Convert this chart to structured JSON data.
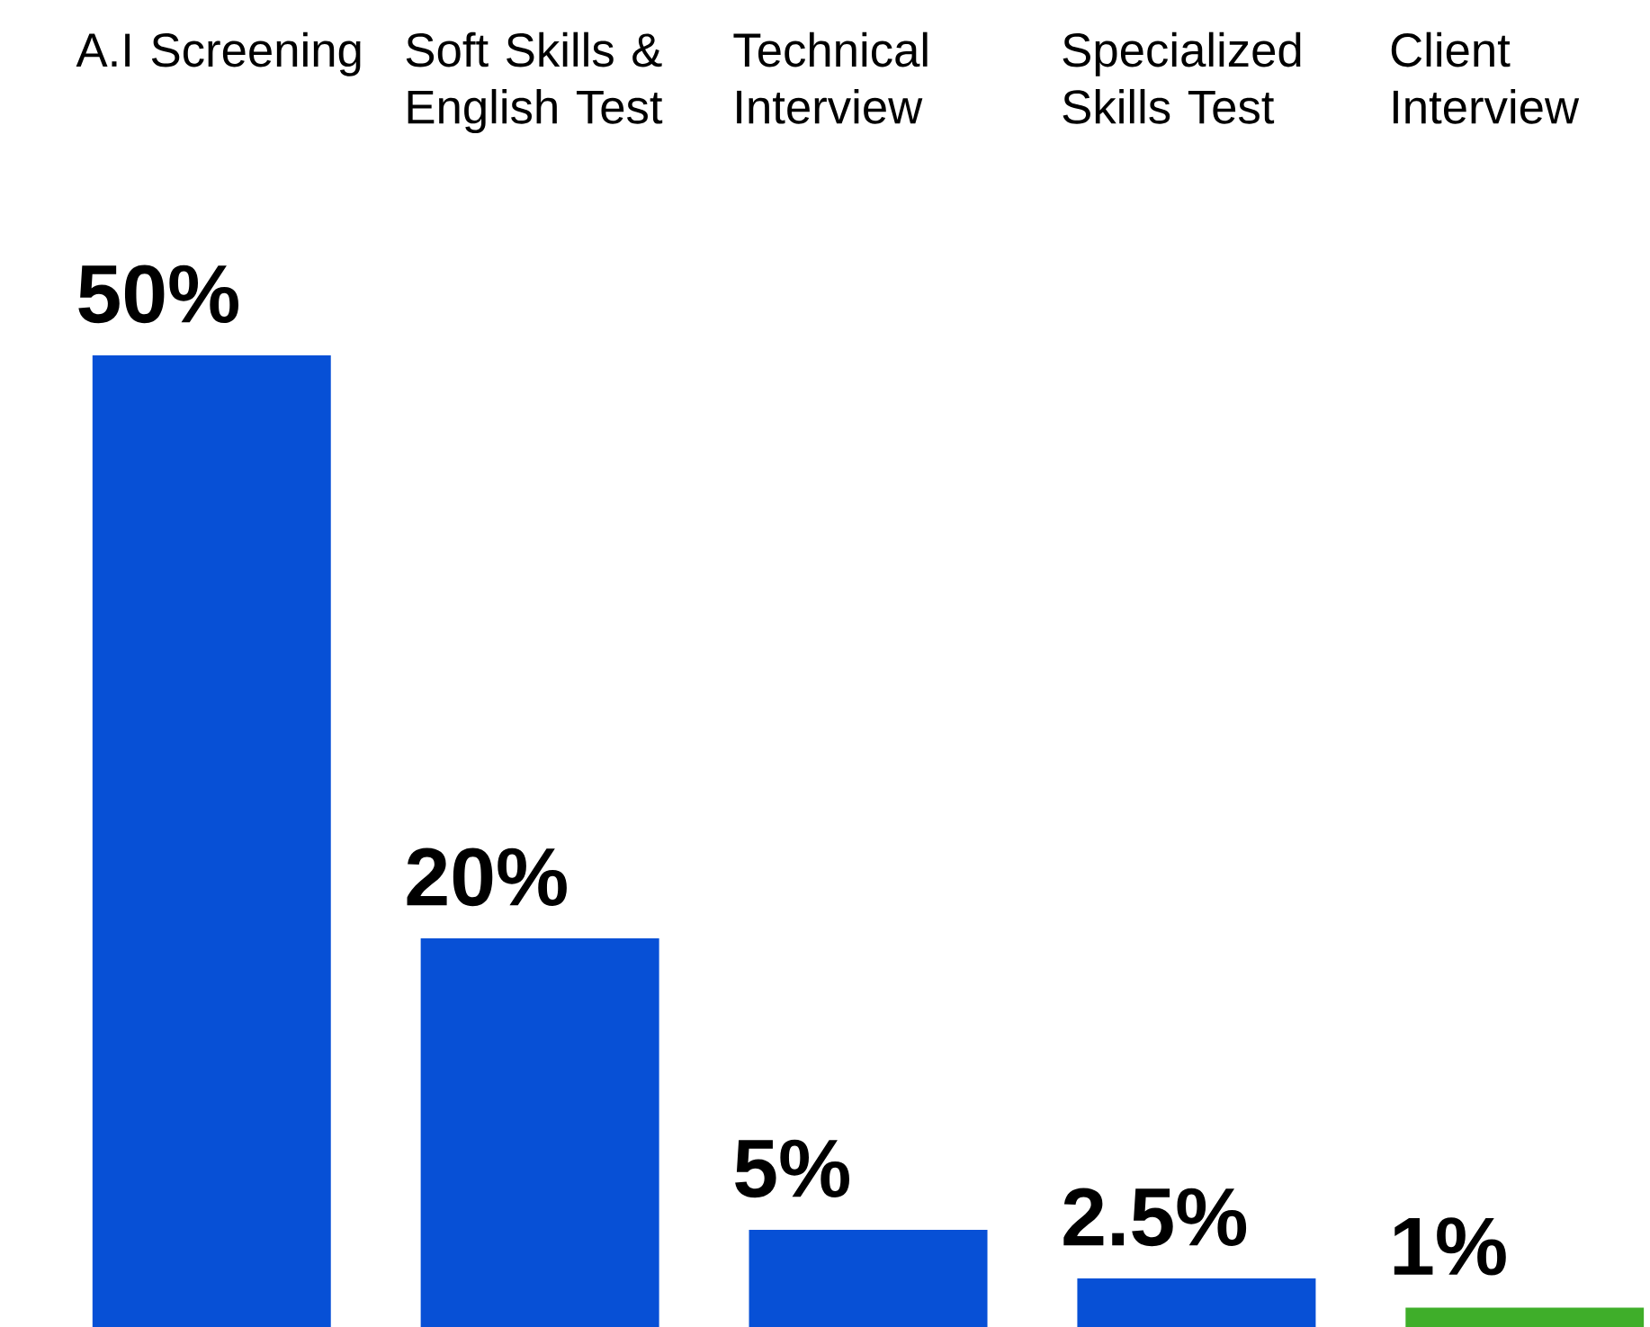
{
  "chart_data": {
    "type": "bar",
    "categories": [
      "A.I Screening",
      "Soft Skills & English Test",
      "Technical Interview",
      "Specialized Skills Test",
      "Client Interview"
    ],
    "values": [
      50,
      20,
      5,
      2.5,
      1
    ],
    "value_labels": [
      "50%",
      "20%",
      "5%",
      "2.5%",
      "1%"
    ],
    "colors": [
      "#0750d6",
      "#0750d6",
      "#0750d6",
      "#0750d6",
      "#3fae2a"
    ],
    "relative": false
  }
}
